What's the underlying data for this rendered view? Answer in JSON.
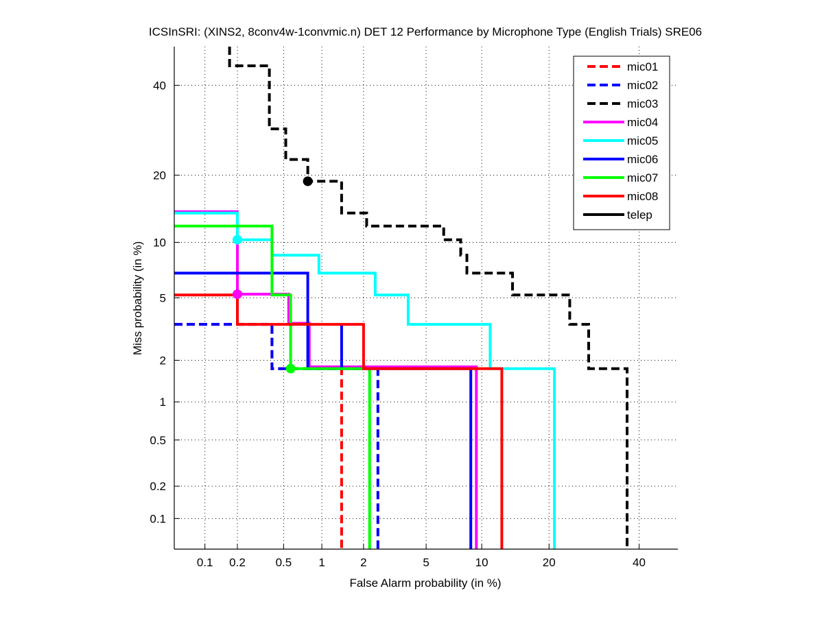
{
  "chart_data": {
    "type": "line",
    "subtype": "DET (probit-scaled step curves)",
    "title": "ICSInSRI: (XINS2, 8conv4w-1convmic.n) DET 12 Performance by Microphone Type (English Trials) SRE06",
    "xlabel": "False Alarm probability (in %)",
    "ylabel": "Miss probability (in %)",
    "x_scale": "probit",
    "y_scale": "probit",
    "xlim": [
      0.05,
      50
    ],
    "ylim": [
      0.05,
      50
    ],
    "x_ticks": [
      0.1,
      0.2,
      0.5,
      1,
      2,
      5,
      10,
      20,
      40
    ],
    "x_tick_labels": [
      "0.1",
      "0.2",
      "0.5",
      "1",
      "2",
      "5",
      "10",
      "20",
      "40"
    ],
    "y_ticks": [
      0.1,
      0.2,
      0.5,
      1,
      2,
      5,
      10,
      20,
      40
    ],
    "y_tick_labels": [
      "0.1",
      "0.2",
      "0.5",
      "1",
      "2",
      "5",
      "10",
      "20",
      "40"
    ],
    "grid": true,
    "legend_position": "top-right",
    "series": [
      {
        "name": "mic01",
        "color": "#ff0000",
        "style": "dashed",
        "points": [
          [
            0.05,
            3.45
          ],
          [
            0.4,
            3.45
          ],
          [
            0.4,
            1.75
          ],
          [
            1.4,
            1.75
          ],
          [
            1.4,
            0.05
          ]
        ],
        "marker": null
      },
      {
        "name": "mic02",
        "color": "#0000ff",
        "style": "dashed",
        "points": [
          [
            0.05,
            3.45
          ],
          [
            0.4,
            3.45
          ],
          [
            0.4,
            1.75
          ],
          [
            2.5,
            1.75
          ],
          [
            2.5,
            0.05
          ]
        ],
        "marker": null
      },
      {
        "name": "mic03",
        "color": "#000000",
        "style": "dashed",
        "points": [
          [
            0.17,
            50
          ],
          [
            0.17,
            45
          ],
          [
            0.38,
            45
          ],
          [
            0.38,
            29.5
          ],
          [
            0.52,
            29.5
          ],
          [
            0.52,
            23
          ],
          [
            0.78,
            23
          ],
          [
            0.78,
            18.9
          ],
          [
            1.4,
            18.9
          ],
          [
            1.4,
            13.8
          ],
          [
            2.1,
            13.8
          ],
          [
            2.1,
            12
          ],
          [
            6.3,
            12
          ],
          [
            6.3,
            10.3
          ],
          [
            7.8,
            10.3
          ],
          [
            7.8,
            8.6
          ],
          [
            8.4,
            8.6
          ],
          [
            8.4,
            6.9
          ],
          [
            14,
            6.9
          ],
          [
            14,
            5.2
          ],
          [
            24,
            5.2
          ],
          [
            24,
            3.45
          ],
          [
            28,
            3.45
          ],
          [
            28,
            1.75
          ],
          [
            37,
            1.75
          ],
          [
            37,
            0.05
          ]
        ],
        "marker": {
          "x": 0.78,
          "y": 18.9
        }
      },
      {
        "name": "mic04",
        "color": "#ff00ff",
        "style": "solid",
        "points": [
          [
            0.05,
            14
          ],
          [
            0.2,
            14
          ],
          [
            0.2,
            5.25
          ],
          [
            0.55,
            5.25
          ],
          [
            0.55,
            3.5
          ],
          [
            0.8,
            3.5
          ],
          [
            0.8,
            1.8
          ],
          [
            9.4,
            1.8
          ],
          [
            9.4,
            0.05
          ]
        ],
        "marker": {
          "x": 0.2,
          "y": 5.25
        }
      },
      {
        "name": "mic05",
        "color": "#00ffff",
        "style": "solid",
        "points": [
          [
            0.05,
            13.8
          ],
          [
            0.2,
            13.8
          ],
          [
            0.2,
            10.3
          ],
          [
            0.4,
            10.3
          ],
          [
            0.4,
            8.6
          ],
          [
            0.95,
            8.6
          ],
          [
            0.95,
            6.9
          ],
          [
            2.4,
            6.9
          ],
          [
            2.4,
            5.2
          ],
          [
            3.9,
            5.2
          ],
          [
            3.9,
            3.45
          ],
          [
            11,
            3.45
          ],
          [
            11,
            1.75
          ],
          [
            21,
            1.75
          ],
          [
            21,
            0.05
          ]
        ],
        "marker": {
          "x": 0.2,
          "y": 10.3
        }
      },
      {
        "name": "mic06",
        "color": "#0000ff",
        "style": "solid",
        "points": [
          [
            0.05,
            6.9
          ],
          [
            0.78,
            6.9
          ],
          [
            0.78,
            1.75
          ],
          [
            1.4,
            1.75
          ],
          [
            1.4,
            3.45
          ],
          [
            1.4,
            1.75
          ],
          [
            8.8,
            1.75
          ],
          [
            8.8,
            0.05
          ]
        ],
        "marker": null
      },
      {
        "name": "mic07",
        "color": "#00ff00",
        "style": "solid",
        "points": [
          [
            0.05,
            12
          ],
          [
            0.4,
            12
          ],
          [
            0.4,
            5.2
          ],
          [
            0.57,
            5.2
          ],
          [
            0.57,
            1.75
          ],
          [
            2.2,
            1.75
          ],
          [
            2.2,
            0.05
          ]
        ],
        "marker": {
          "x": 0.57,
          "y": 1.75
        }
      },
      {
        "name": "mic08",
        "color": "#ff0000",
        "style": "solid",
        "points": [
          [
            0.05,
            5.2
          ],
          [
            0.2,
            5.2
          ],
          [
            0.2,
            3.45
          ],
          [
            2,
            3.45
          ],
          [
            2,
            1.75
          ],
          [
            12.5,
            1.75
          ],
          [
            12.5,
            0.05
          ]
        ],
        "marker": null
      },
      {
        "name": "telep",
        "color": "#000000",
        "style": "solid",
        "points": [],
        "marker": null
      }
    ]
  }
}
